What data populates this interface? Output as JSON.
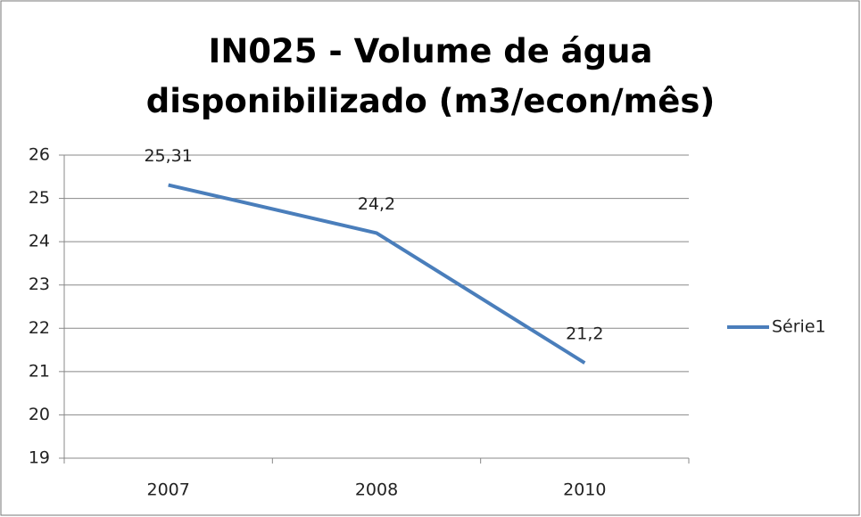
{
  "chart_data": {
    "type": "line",
    "title": "IN025 - Volume de água disponibilizado (m3/econ/mês)",
    "categories": [
      "2007",
      "2008",
      "2010"
    ],
    "series": [
      {
        "name": "Série1",
        "color": "#4a7ebb",
        "values": [
          25.31,
          24.2,
          21.2
        ],
        "value_labels": [
          "25,31",
          "24,2",
          "21,2"
        ]
      }
    ],
    "ylim": [
      19,
      26
    ],
    "yticks": [
      19,
      20,
      21,
      22,
      23,
      24,
      25,
      26
    ],
    "grid": true,
    "legend": "right"
  }
}
